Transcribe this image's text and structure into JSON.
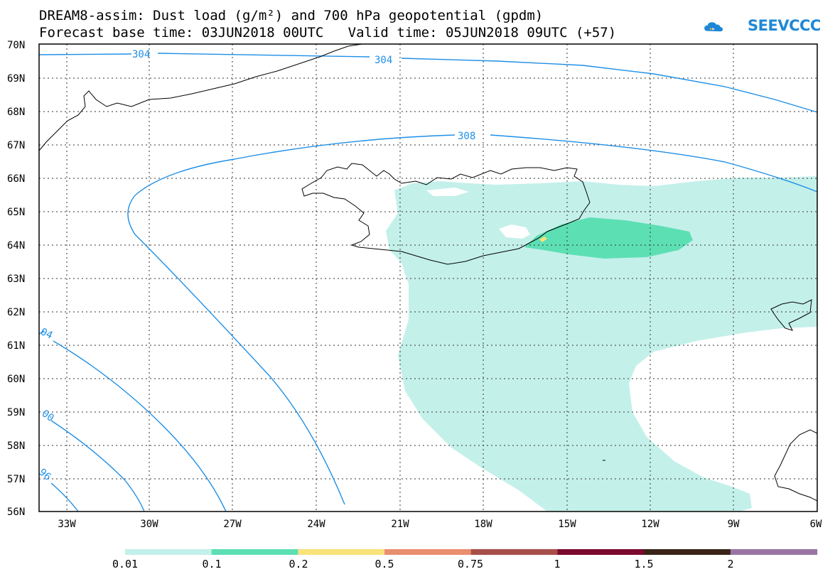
{
  "header": {
    "title_line1": "DREAM8-assim: Dust load (g/m²) and 700 hPa geopotential (gpdm)",
    "title_line2": "Forecast base time: 03JUN2018 00UTC   Valid time: 05JUN2018 09UTC (+57)"
  },
  "logo": {
    "text": "SEEVCCC",
    "icon": "cloud-logo-icon",
    "color": "#1e88d6"
  },
  "map": {
    "lat_labels": [
      "70N",
      "69N",
      "68N",
      "67N",
      "66N",
      "65N",
      "64N",
      "63N",
      "62N",
      "61N",
      "60N",
      "59N",
      "58N",
      "57N",
      "56N"
    ],
    "lon_labels": [
      "33W",
      "30W",
      "27W",
      "24W",
      "21W",
      "18W",
      "15W",
      "12W",
      "9W",
      "6W"
    ],
    "contour_labels": [
      "304",
      "304",
      "308",
      "04",
      "00",
      "96"
    ],
    "contour_color": "#1e8fe6"
  },
  "colorbar": {
    "labels": [
      "0.01",
      "0.1",
      "0.2",
      "0.5",
      "0.75",
      "1",
      "1.5",
      "2"
    ],
    "colors": [
      "#c4f0ea",
      "#5ddfb4",
      "#f7e37a",
      "#e98e6e",
      "#a84e48",
      "#7a0a2e",
      "#3a2416",
      "#9a74a4"
    ]
  }
}
